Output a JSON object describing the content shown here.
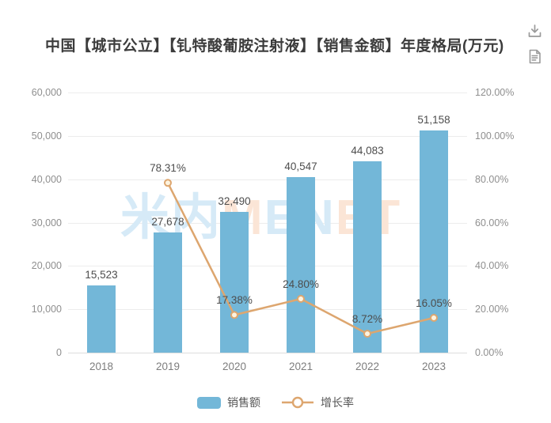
{
  "title": "中国【城市公立】【钆特酸葡胺注射液】【销售金额】年度格局(万元)",
  "toolbar": {
    "icons": [
      {
        "name": "download-icon"
      },
      {
        "name": "report-document-icon"
      }
    ],
    "icon_color": "#9a9a9a"
  },
  "legend": {
    "items": [
      {
        "label": "销售额",
        "type": "bar"
      },
      {
        "label": "增长率",
        "type": "line"
      }
    ]
  },
  "watermark": {
    "letters": [
      {
        "text": "米",
        "color": "#d6eaf7"
      },
      {
        "text": "内",
        "color": "#d6eaf7"
      },
      {
        "text": "M",
        "color": "#fbe5d6"
      },
      {
        "text": "E",
        "color": "#d6eaf7"
      },
      {
        "text": "N",
        "color": "#d6eaf7"
      },
      {
        "text": "E",
        "color": "#fbe5d6"
      },
      {
        "text": "T",
        "color": "#fbe5d6"
      }
    ]
  },
  "colors": {
    "bar": "#73b7d8",
    "line": "#dda66f",
    "marker_fill": "#fdf4e0",
    "grid": "#ececec",
    "axis_line": "#dedede",
    "axis_text": "#8f8f8f",
    "data_label": "#4d4d4d"
  },
  "chart_data": {
    "type": "bar",
    "subtype": "bar+line combo, dual axis",
    "title": "中国【城市公立】【钆特酸葡胺注射液】【销售金额】年度格局(万元)",
    "categories": [
      "2018",
      "2019",
      "2020",
      "2021",
      "2022",
      "2023"
    ],
    "series": [
      {
        "name": "销售额",
        "type": "bar",
        "axis": "left",
        "values": [
          15523,
          27678,
          32490,
          40547,
          44083,
          51158
        ],
        "labels": [
          "15,523",
          "27,678",
          "32,490",
          "40,547",
          "44,083",
          "51,158"
        ]
      },
      {
        "name": "增长率",
        "type": "line",
        "axis": "right",
        "values": [
          null,
          78.31,
          17.38,
          24.8,
          8.72,
          16.05
        ],
        "labels": [
          null,
          "78.31%",
          "17.38%",
          "24.80%",
          "8.72%",
          "16.05%"
        ]
      }
    ],
    "left_axis": {
      "min": 0,
      "max": 60000,
      "tick_step": 10000,
      "ticks": [
        "0",
        "10,000",
        "20,000",
        "30,000",
        "40,000",
        "50,000",
        "60,000"
      ]
    },
    "right_axis": {
      "min": 0,
      "max": 120,
      "tick_step": 20,
      "ticks": [
        "0.00%",
        "20.00%",
        "40.00%",
        "60.00%",
        "80.00%",
        "100.00%",
        "120.00%"
      ]
    },
    "grid": true,
    "legend_position": "bottom"
  }
}
